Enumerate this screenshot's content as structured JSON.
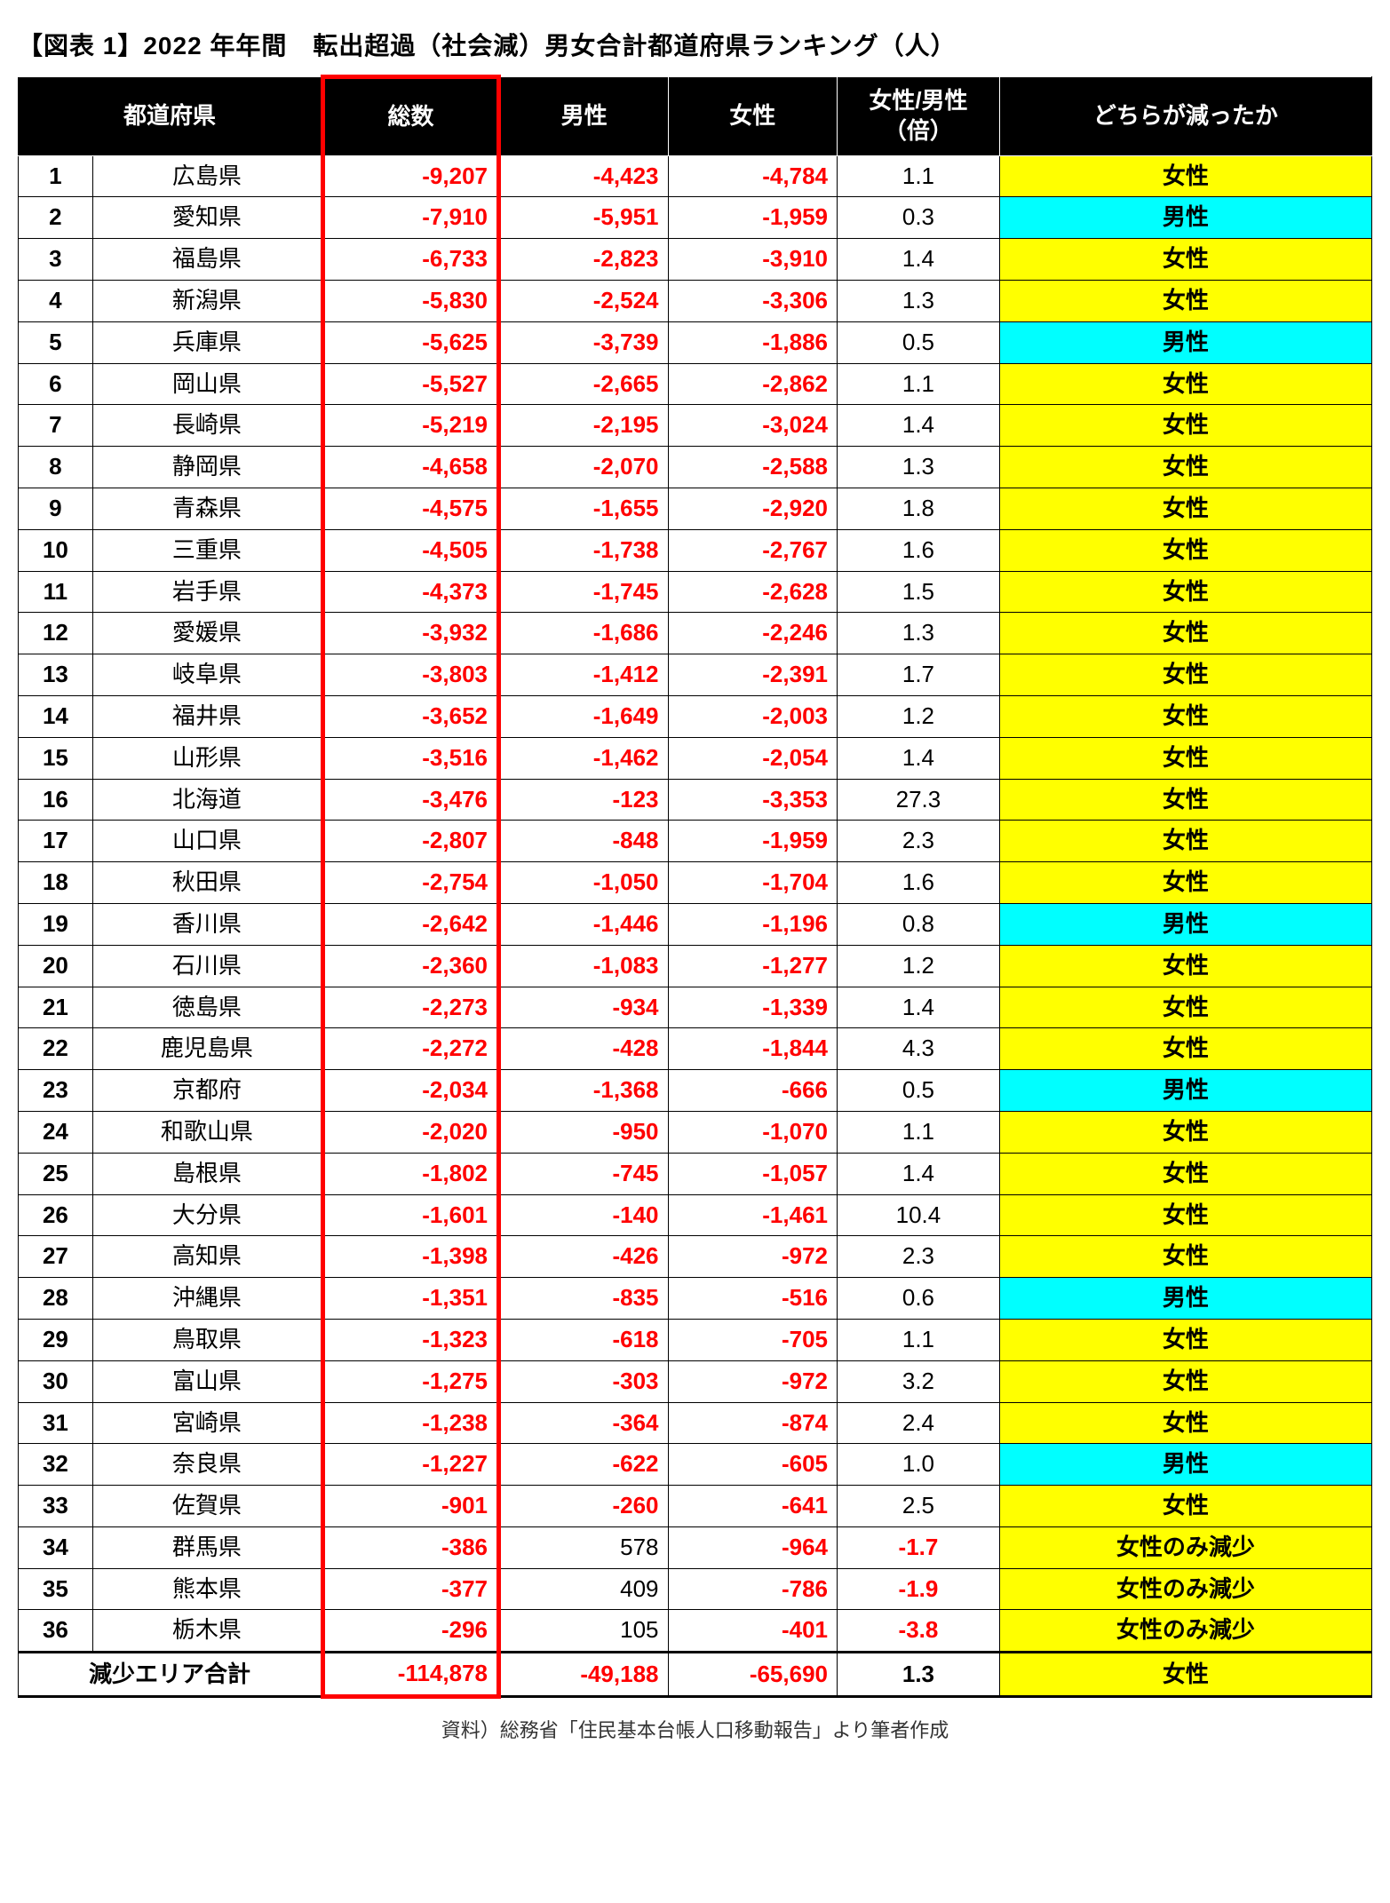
{
  "title": "【図表 1】2022 年年間　転出超過（社会減）男女合計都道府県ランキング（人）",
  "source": "資料）総務省「住民基本台帳人口移動報告」より筆者作成",
  "columns": {
    "rank": "",
    "pref": "都道府県",
    "total": "総数",
    "male": "男性",
    "female": "女性",
    "ratio": "女性/男性\n（倍）",
    "which": "どちらが減ったか"
  },
  "colors": {
    "header_bg": "#000000",
    "header_fg": "#ffffff",
    "negative": "#ff0000",
    "highlight_box": "#ff0000",
    "fill_female": "#ffff00",
    "fill_male": "#00ffff"
  },
  "which_labels": {
    "female": "女性",
    "male": "男性",
    "female_only": "女性のみ減少"
  },
  "rows": [
    {
      "rank": 1,
      "pref": "広島県",
      "total": "-9,207",
      "male": "-4,423",
      "female": "-4,784",
      "ratio": "1.1",
      "ratio_neg": false,
      "which": "female"
    },
    {
      "rank": 2,
      "pref": "愛知県",
      "total": "-7,910",
      "male": "-5,951",
      "female": "-1,959",
      "ratio": "0.3",
      "ratio_neg": false,
      "which": "male"
    },
    {
      "rank": 3,
      "pref": "福島県",
      "total": "-6,733",
      "male": "-2,823",
      "female": "-3,910",
      "ratio": "1.4",
      "ratio_neg": false,
      "which": "female"
    },
    {
      "rank": 4,
      "pref": "新潟県",
      "total": "-5,830",
      "male": "-2,524",
      "female": "-3,306",
      "ratio": "1.3",
      "ratio_neg": false,
      "which": "female"
    },
    {
      "rank": 5,
      "pref": "兵庫県",
      "total": "-5,625",
      "male": "-3,739",
      "female": "-1,886",
      "ratio": "0.5",
      "ratio_neg": false,
      "which": "male"
    },
    {
      "rank": 6,
      "pref": "岡山県",
      "total": "-5,527",
      "male": "-2,665",
      "female": "-2,862",
      "ratio": "1.1",
      "ratio_neg": false,
      "which": "female"
    },
    {
      "rank": 7,
      "pref": "長崎県",
      "total": "-5,219",
      "male": "-2,195",
      "female": "-3,024",
      "ratio": "1.4",
      "ratio_neg": false,
      "which": "female"
    },
    {
      "rank": 8,
      "pref": "静岡県",
      "total": "-4,658",
      "male": "-2,070",
      "female": "-2,588",
      "ratio": "1.3",
      "ratio_neg": false,
      "which": "female"
    },
    {
      "rank": 9,
      "pref": "青森県",
      "total": "-4,575",
      "male": "-1,655",
      "female": "-2,920",
      "ratio": "1.8",
      "ratio_neg": false,
      "which": "female"
    },
    {
      "rank": 10,
      "pref": "三重県",
      "total": "-4,505",
      "male": "-1,738",
      "female": "-2,767",
      "ratio": "1.6",
      "ratio_neg": false,
      "which": "female"
    },
    {
      "rank": 11,
      "pref": "岩手県",
      "total": "-4,373",
      "male": "-1,745",
      "female": "-2,628",
      "ratio": "1.5",
      "ratio_neg": false,
      "which": "female"
    },
    {
      "rank": 12,
      "pref": "愛媛県",
      "total": "-3,932",
      "male": "-1,686",
      "female": "-2,246",
      "ratio": "1.3",
      "ratio_neg": false,
      "which": "female"
    },
    {
      "rank": 13,
      "pref": "岐阜県",
      "total": "-3,803",
      "male": "-1,412",
      "female": "-2,391",
      "ratio": "1.7",
      "ratio_neg": false,
      "which": "female"
    },
    {
      "rank": 14,
      "pref": "福井県",
      "total": "-3,652",
      "male": "-1,649",
      "female": "-2,003",
      "ratio": "1.2",
      "ratio_neg": false,
      "which": "female"
    },
    {
      "rank": 15,
      "pref": "山形県",
      "total": "-3,516",
      "male": "-1,462",
      "female": "-2,054",
      "ratio": "1.4",
      "ratio_neg": false,
      "which": "female"
    },
    {
      "rank": 16,
      "pref": "北海道",
      "total": "-3,476",
      "male": "-123",
      "female": "-3,353",
      "ratio": "27.3",
      "ratio_neg": false,
      "which": "female"
    },
    {
      "rank": 17,
      "pref": "山口県",
      "total": "-2,807",
      "male": "-848",
      "female": "-1,959",
      "ratio": "2.3",
      "ratio_neg": false,
      "which": "female"
    },
    {
      "rank": 18,
      "pref": "秋田県",
      "total": "-2,754",
      "male": "-1,050",
      "female": "-1,704",
      "ratio": "1.6",
      "ratio_neg": false,
      "which": "female"
    },
    {
      "rank": 19,
      "pref": "香川県",
      "total": "-2,642",
      "male": "-1,446",
      "female": "-1,196",
      "ratio": "0.8",
      "ratio_neg": false,
      "which": "male"
    },
    {
      "rank": 20,
      "pref": "石川県",
      "total": "-2,360",
      "male": "-1,083",
      "female": "-1,277",
      "ratio": "1.2",
      "ratio_neg": false,
      "which": "female"
    },
    {
      "rank": 21,
      "pref": "徳島県",
      "total": "-2,273",
      "male": "-934",
      "female": "-1,339",
      "ratio": "1.4",
      "ratio_neg": false,
      "which": "female"
    },
    {
      "rank": 22,
      "pref": "鹿児島県",
      "total": "-2,272",
      "male": "-428",
      "female": "-1,844",
      "ratio": "4.3",
      "ratio_neg": false,
      "which": "female"
    },
    {
      "rank": 23,
      "pref": "京都府",
      "total": "-2,034",
      "male": "-1,368",
      "female": "-666",
      "ratio": "0.5",
      "ratio_neg": false,
      "which": "male"
    },
    {
      "rank": 24,
      "pref": "和歌山県",
      "total": "-2,020",
      "male": "-950",
      "female": "-1,070",
      "ratio": "1.1",
      "ratio_neg": false,
      "which": "female"
    },
    {
      "rank": 25,
      "pref": "島根県",
      "total": "-1,802",
      "male": "-745",
      "female": "-1,057",
      "ratio": "1.4",
      "ratio_neg": false,
      "which": "female"
    },
    {
      "rank": 26,
      "pref": "大分県",
      "total": "-1,601",
      "male": "-140",
      "female": "-1,461",
      "ratio": "10.4",
      "ratio_neg": false,
      "which": "female"
    },
    {
      "rank": 27,
      "pref": "高知県",
      "total": "-1,398",
      "male": "-426",
      "female": "-972",
      "ratio": "2.3",
      "ratio_neg": false,
      "which": "female"
    },
    {
      "rank": 28,
      "pref": "沖縄県",
      "total": "-1,351",
      "male": "-835",
      "female": "-516",
      "ratio": "0.6",
      "ratio_neg": false,
      "which": "male"
    },
    {
      "rank": 29,
      "pref": "鳥取県",
      "total": "-1,323",
      "male": "-618",
      "female": "-705",
      "ratio": "1.1",
      "ratio_neg": false,
      "which": "female"
    },
    {
      "rank": 30,
      "pref": "富山県",
      "total": "-1,275",
      "male": "-303",
      "female": "-972",
      "ratio": "3.2",
      "ratio_neg": false,
      "which": "female"
    },
    {
      "rank": 31,
      "pref": "宮崎県",
      "total": "-1,238",
      "male": "-364",
      "female": "-874",
      "ratio": "2.4",
      "ratio_neg": false,
      "which": "female"
    },
    {
      "rank": 32,
      "pref": "奈良県",
      "total": "-1,227",
      "male": "-622",
      "female": "-605",
      "ratio": "1.0",
      "ratio_neg": false,
      "which": "male"
    },
    {
      "rank": 33,
      "pref": "佐賀県",
      "total": "-901",
      "male": "-260",
      "female": "-641",
      "ratio": "2.5",
      "ratio_neg": false,
      "which": "female"
    },
    {
      "rank": 34,
      "pref": "群馬県",
      "total": "-386",
      "male": "578",
      "male_pos": true,
      "female": "-964",
      "ratio": "-1.7",
      "ratio_neg": true,
      "which": "female_only"
    },
    {
      "rank": 35,
      "pref": "熊本県",
      "total": "-377",
      "male": "409",
      "male_pos": true,
      "female": "-786",
      "ratio": "-1.9",
      "ratio_neg": true,
      "which": "female_only"
    },
    {
      "rank": 36,
      "pref": "栃木県",
      "total": "-296",
      "male": "105",
      "male_pos": true,
      "female": "-401",
      "ratio": "-3.8",
      "ratio_neg": true,
      "which": "female_only"
    }
  ],
  "totals": {
    "label": "減少エリア合計",
    "total": "-114,878",
    "male": "-49,188",
    "female": "-65,690",
    "ratio": "1.3",
    "which": "female"
  }
}
